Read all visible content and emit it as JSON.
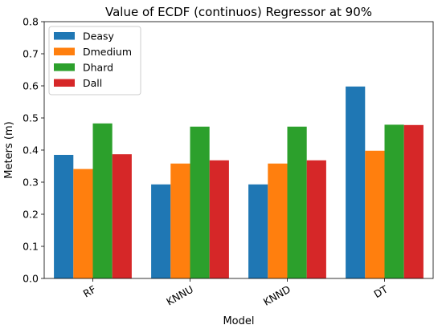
{
  "chart_data": {
    "type": "bar",
    "title": "Value of ECDF (continuos) Regressor at 90%",
    "xlabel": "Model",
    "ylabel": "Meters (m)",
    "categories": [
      "RF",
      "KNNU",
      "KNND",
      "DT"
    ],
    "ylim": [
      0,
      0.8
    ],
    "yticks": [
      "0.0",
      "0.1",
      "0.2",
      "0.3",
      "0.4",
      "0.5",
      "0.6",
      "0.7",
      "0.8"
    ],
    "grid": false,
    "legend_position": "top-left",
    "series": [
      {
        "name": "Deasy",
        "color": "#1f77b4",
        "values": [
          0.385,
          0.293,
          0.293,
          0.598
        ]
      },
      {
        "name": "Dmedium",
        "color": "#ff7f0e",
        "values": [
          0.341,
          0.358,
          0.358,
          0.398
        ]
      },
      {
        "name": "Dhard",
        "color": "#2ca02c",
        "values": [
          0.483,
          0.473,
          0.473,
          0.479
        ]
      },
      {
        "name": "Dall",
        "color": "#d62728",
        "values": [
          0.387,
          0.368,
          0.368,
          0.478
        ]
      }
    ]
  }
}
